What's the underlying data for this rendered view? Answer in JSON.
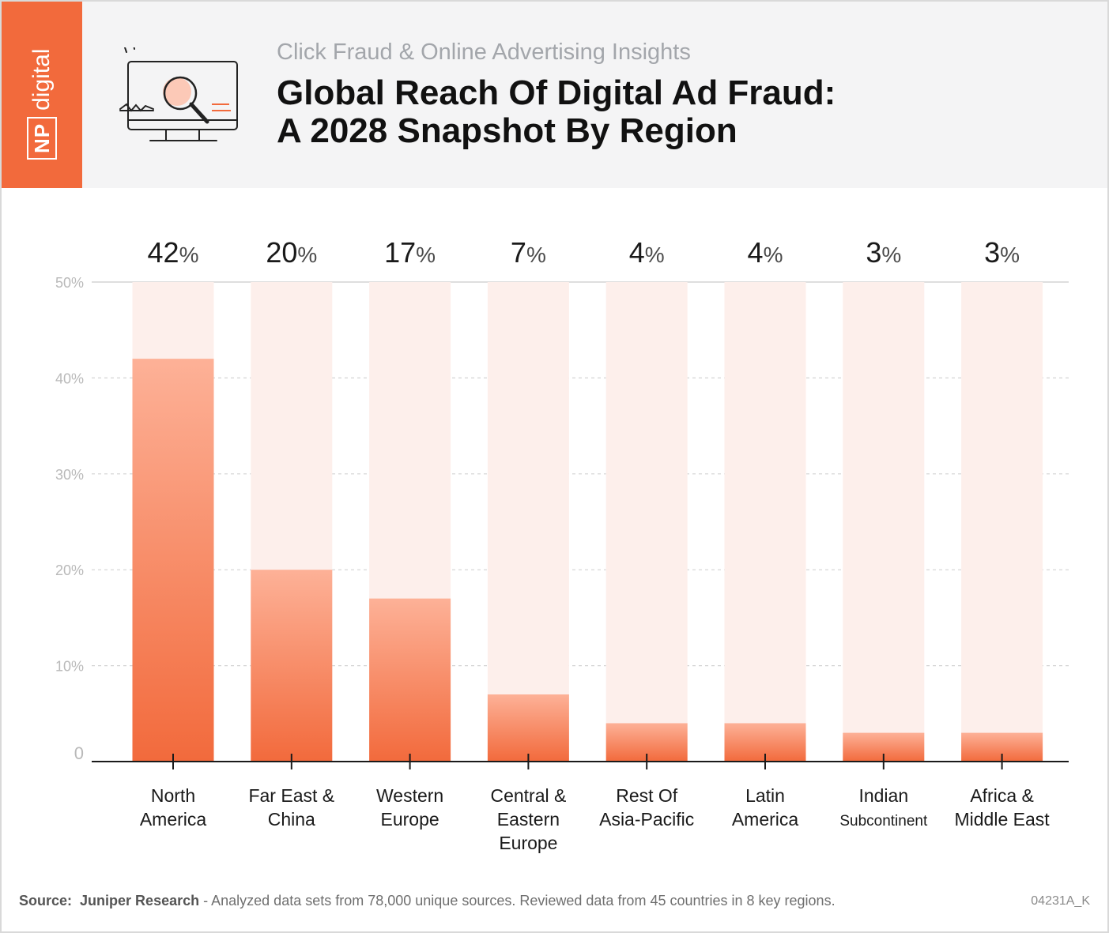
{
  "header": {
    "brand_np": "NP",
    "brand_digital": "digital",
    "subtitle": "Click Fraud & Online Advertising Insights",
    "title_line1": "Global Reach Of Digital Ad Fraud:",
    "title_line2": "A 2028 Snapshot By Region"
  },
  "colors": {
    "brand": "#f26a3c",
    "bar_top": "#fdb197",
    "bar_bottom": "#f26a3c",
    "bar_background": "#fdefeb"
  },
  "chart_data": {
    "type": "bar",
    "categories": [
      "North\nAmerica",
      "Far East &\nChina",
      "Western\nEurope",
      "Central &\nEastern\nEurope",
      "Rest Of\nAsia-Pacific",
      "Latin\nAmerica",
      "Indian\nSubcontinent",
      "Africa &\nMiddle East"
    ],
    "values": [
      42,
      20,
      17,
      7,
      4,
      4,
      3,
      3
    ],
    "value_labels": [
      "42",
      "20",
      "17",
      "7",
      "4",
      "4",
      "3",
      "3"
    ],
    "value_suffix": "%",
    "yticks": [
      "0",
      "10%",
      "20%",
      "30%",
      "40%",
      "50%"
    ],
    "ytick_values": [
      0,
      10,
      20,
      30,
      40,
      50
    ],
    "ylim": [
      0,
      50
    ],
    "title": "",
    "xlabel": "",
    "ylabel": "",
    "grid": true
  },
  "footer": {
    "source_label": "Source:",
    "source_name": "Juniper Research",
    "source_text": " - Analyzed data sets from 78,000 unique sources. Reviewed data from 45 countries in 8 key regions.",
    "code": "04231A_K"
  }
}
